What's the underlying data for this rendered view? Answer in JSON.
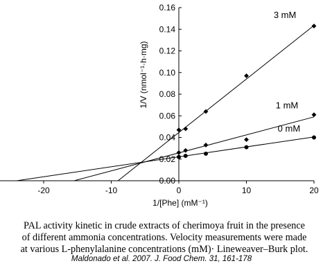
{
  "chart_data": {
    "type": "scatter",
    "title": "",
    "xlabel": "1/[Phe]  (mM⁻¹)",
    "ylabel": "1/V (nmol⁻¹·h·mg)",
    "xlim": [
      -27,
      21
    ],
    "ylim": [
      0,
      0.16
    ],
    "xticks": [
      -20,
      -10,
      0,
      10,
      20
    ],
    "xtick_labels": [
      "-20",
      "-10",
      "0",
      "10",
      "20"
    ],
    "yticks": [
      0,
      0.02,
      0.04,
      0.06,
      0.08,
      0.1,
      0.12,
      0.14,
      0.16
    ],
    "ytick_labels": [
      "0.00",
      "0.02",
      "0.04",
      "0.06",
      "0.08",
      "0.10",
      "0.12",
      "0.14",
      "0.16"
    ],
    "grid": false,
    "legend": "none (series labelled directly next to the lines)",
    "series": [
      {
        "name": "3 mM",
        "marker": "diamond",
        "x": [
          0,
          1,
          4,
          10,
          20
        ],
        "y": [
          0.047,
          0.048,
          0.064,
          0.097,
          0.143
        ],
        "fit_line": {
          "x": [
            -9.0,
            20
          ],
          "y": [
            0.0,
            0.1435
          ]
        }
      },
      {
        "name": "1 mM",
        "marker": "diamond",
        "x": [
          0,
          1,
          4,
          10,
          20
        ],
        "y": [
          0.026,
          0.028,
          0.033,
          0.038,
          0.061
        ],
        "fit_line": {
          "x": [
            -15.5,
            20
          ],
          "y": [
            0.0,
            0.059
          ]
        }
      },
      {
        "name": "0 mM",
        "marker": "circle",
        "x": [
          0,
          1,
          4,
          10,
          20
        ],
        "y": [
          0.022,
          0.023,
          0.025,
          0.031,
          0.04
        ],
        "fit_line": {
          "x": [
            -24,
            20
          ],
          "y": [
            0.0,
            0.0405
          ]
        }
      }
    ]
  },
  "caption": {
    "lines": [
      "PAL activity kinetic in crude extracts of cherimoya fruit in the presence",
      "of different ammonia concentrations. Velocity measurements were made",
      "at various L-phenylalanine concentrations (mM)· Lineweaver–Burk plot."
    ]
  },
  "citation": "Maldonado et al. 2007. J. Food Chem. 31, 161-178"
}
